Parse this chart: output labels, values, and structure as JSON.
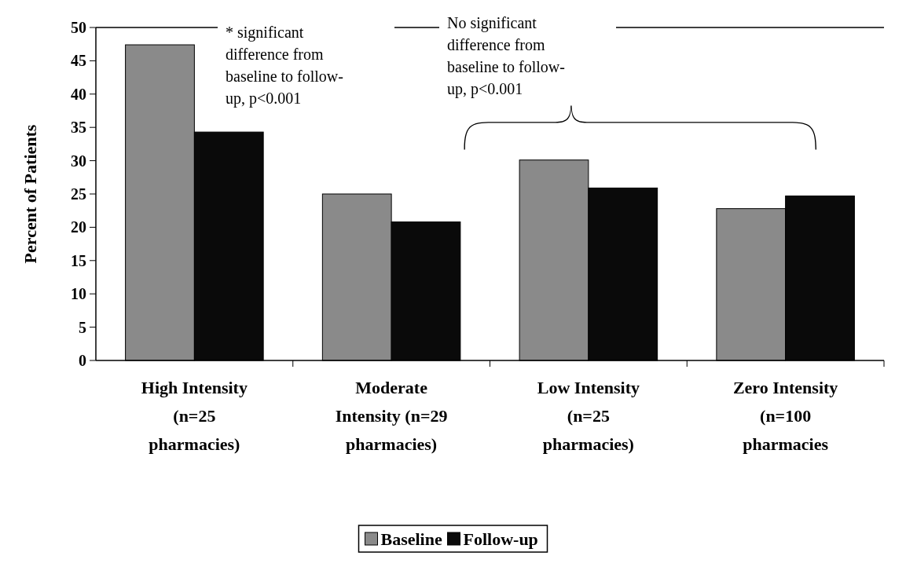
{
  "chart_data": {
    "type": "bar",
    "ylabel": "Percent of Patients",
    "categories": [
      "High Intensity\n(n=25\npharmacies)",
      "Moderate\nIntensity (n=29\npharmacies)",
      "Low Intensity\n(n=25\npharmacies)",
      "Zero Intensity\n(n=100\npharmacies"
    ],
    "series": [
      {
        "name": "Baseline",
        "color": "#8a8a8a",
        "values": [
          47.4,
          25.0,
          30.1,
          22.8
        ]
      },
      {
        "name": "Follow-up",
        "color": "#0a0a0a",
        "values": [
          34.3,
          20.8,
          25.9,
          24.7
        ]
      }
    ],
    "ylim": [
      0,
      50
    ],
    "yticks": [
      0,
      5,
      10,
      15,
      20,
      25,
      30,
      35,
      40,
      45,
      50
    ],
    "annotations": [
      "* significant\ndifference from\nbaseline to follow-\nup, p<0.001",
      "No significant\ndifference from\nbaseline to follow-\nup, p<0.001"
    ],
    "legend": "bottom",
    "grid": false
  }
}
